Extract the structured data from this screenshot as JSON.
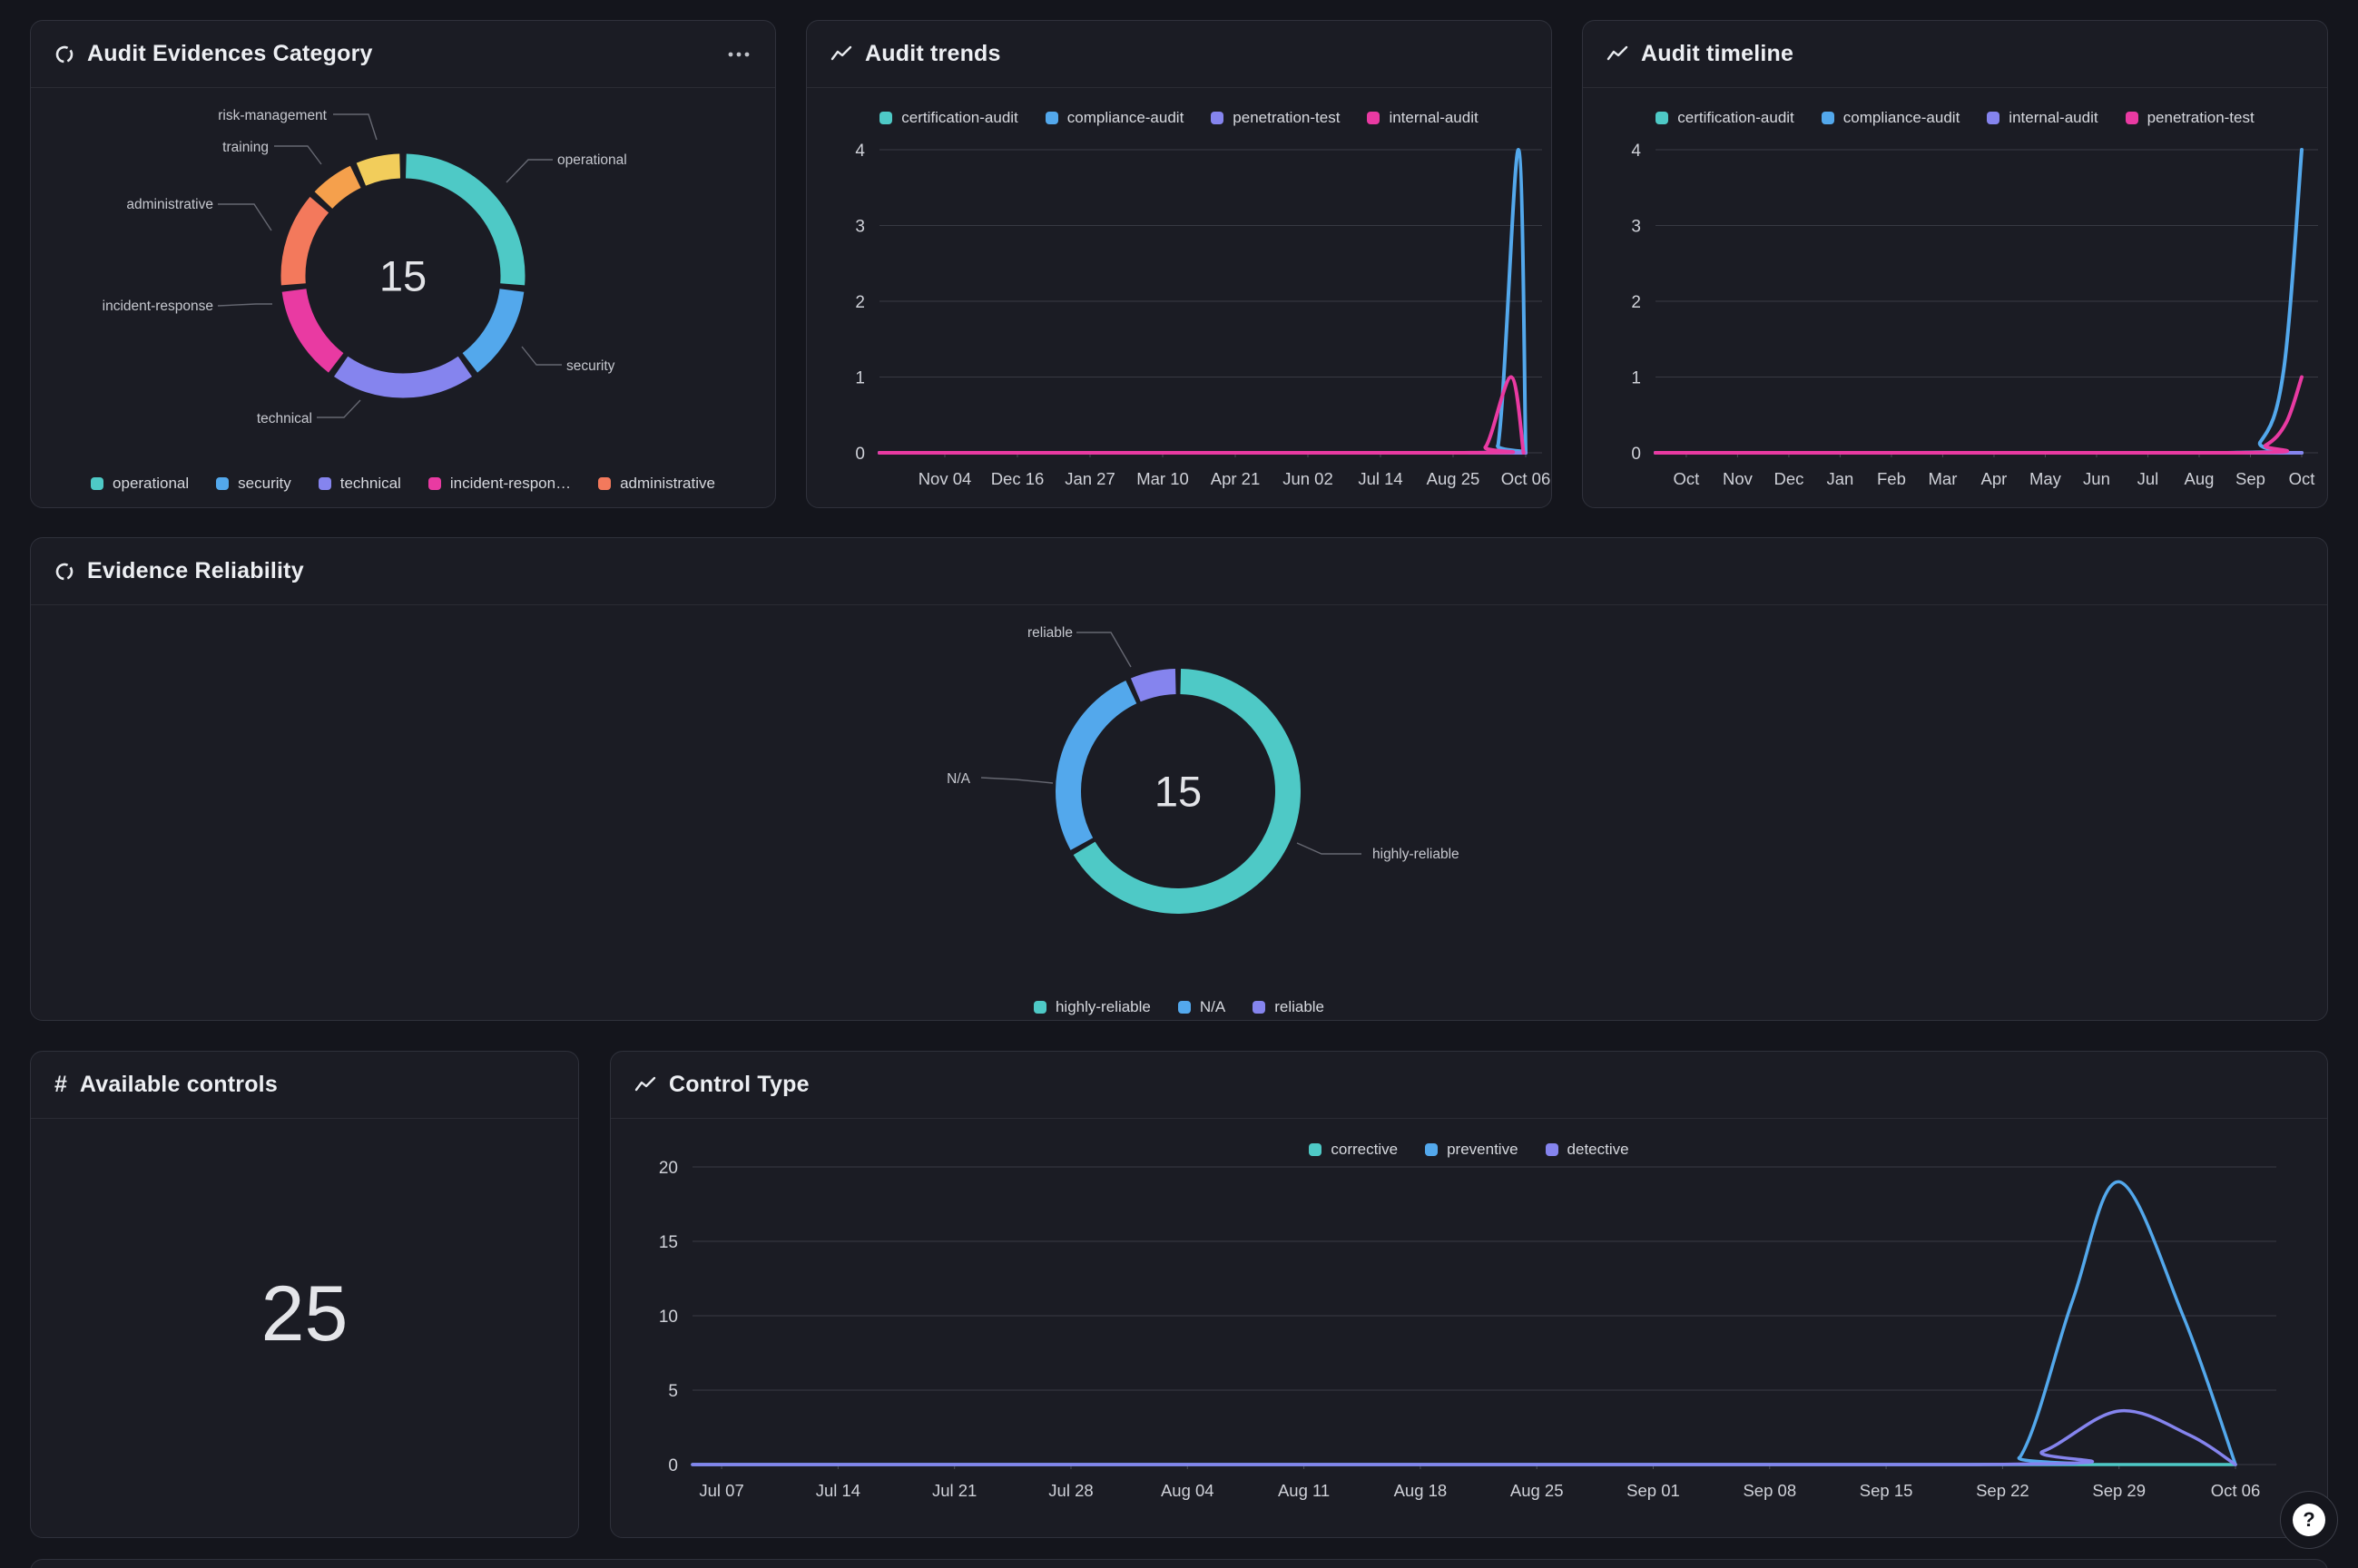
{
  "page": {
    "help_label": "?"
  },
  "chart_data": [
    {
      "id": "audit-evidences-category",
      "type": "donut",
      "title": "Audit Evidences Category",
      "center_total": "15",
      "slices": [
        {
          "label": "operational",
          "value": 4,
          "color": "#4ec9c6"
        },
        {
          "label": "security",
          "value": 2,
          "color": "#53a8ec"
        },
        {
          "label": "technical",
          "value": 3,
          "color": "#8584ee"
        },
        {
          "label": "incident-response",
          "value": 2,
          "color": "#e93aa2"
        },
        {
          "label": "administrative",
          "value": 2,
          "color": "#f3795c"
        },
        {
          "label": "training",
          "value": 1,
          "color": "#f5a04c"
        },
        {
          "label": "risk-management",
          "value": 1,
          "color": "#f2cd5b"
        }
      ],
      "legend": [
        {
          "label": "operational",
          "color": "#4ec9c6"
        },
        {
          "label": "security",
          "color": "#53a8ec"
        },
        {
          "label": "technical",
          "color": "#8584ee"
        },
        {
          "label": "incident-respon…",
          "color": "#e93aa2"
        },
        {
          "label": "administrative",
          "color": "#f3795c"
        }
      ]
    },
    {
      "id": "audit-trends",
      "type": "line",
      "title": "Audit trends",
      "x_ticks": [
        "Nov 04",
        "Dec 16",
        "Jan 27",
        "Mar 10",
        "Apr 21",
        "Jun 02",
        "Jul 14",
        "Aug 25",
        "Oct 06"
      ],
      "y_ticks": [
        4,
        3,
        2,
        1,
        0
      ],
      "y_max": 4,
      "legend": [
        {
          "label": "certification-audit",
          "color": "#4ec9c6"
        },
        {
          "label": "compliance-audit",
          "color": "#53a8ec"
        },
        {
          "label": "penetration-test",
          "color": "#8584ee"
        },
        {
          "label": "internal-audit",
          "color": "#e93aa2"
        }
      ],
      "series": [
        {
          "name": "certification-audit",
          "color": "#4ec9c6",
          "points": [
            [
              null,
              0
            ],
            [
              8,
              0
            ]
          ]
        },
        {
          "name": "compliance-audit",
          "color": "#53a8ec",
          "points": [
            [
              null,
              0
            ],
            [
              7.3,
              0
            ],
            [
              7.62,
              0.1
            ],
            [
              7.9,
              4
            ],
            [
              8,
              0
            ]
          ]
        },
        {
          "name": "penetration-test",
          "color": "#8584ee",
          "points": [
            [
              null,
              0
            ],
            [
              8,
              0
            ]
          ]
        },
        {
          "name": "internal-audit",
          "color": "#e93aa2",
          "points": [
            [
              null,
              0
            ],
            [
              7.15,
              0
            ],
            [
              7.45,
              0.08
            ],
            [
              7.8,
              1
            ],
            [
              7.97,
              0
            ]
          ]
        }
      ]
    },
    {
      "id": "audit-timeline",
      "type": "line",
      "title": "Audit timeline",
      "x_ticks": [
        "Oct",
        "Nov",
        "Dec",
        "Jan",
        "Feb",
        "Mar",
        "Apr",
        "May",
        "Jun",
        "Jul",
        "Aug",
        "Sep",
        "Oct"
      ],
      "y_ticks": [
        4,
        3,
        2,
        1,
        0
      ],
      "y_max": 4,
      "legend": [
        {
          "label": "certification-audit",
          "color": "#4ec9c6"
        },
        {
          "label": "compliance-audit",
          "color": "#53a8ec"
        },
        {
          "label": "internal-audit",
          "color": "#8584ee"
        },
        {
          "label": "penetration-test",
          "color": "#e93aa2"
        }
      ],
      "series": [
        {
          "name": "certification-audit",
          "color": "#4ec9c6",
          "points": [
            [
              null,
              0
            ],
            [
              12,
              0
            ]
          ]
        },
        {
          "name": "compliance-audit",
          "color": "#53a8ec",
          "points": [
            [
              null,
              0
            ],
            [
              10.5,
              0
            ],
            [
              11.2,
              0.15
            ],
            [
              11.65,
              1.1
            ],
            [
              12,
              4
            ]
          ]
        },
        {
          "name": "internal-audit",
          "color": "#8584ee",
          "points": [
            [
              null,
              0
            ],
            [
              12,
              0
            ]
          ]
        },
        {
          "name": "penetration-test",
          "color": "#e93aa2",
          "points": [
            [
              null,
              0
            ],
            [
              10.7,
              0
            ],
            [
              11.3,
              0.1
            ],
            [
              11.7,
              0.4
            ],
            [
              12,
              1
            ]
          ]
        }
      ]
    },
    {
      "id": "evidence-reliability",
      "type": "donut",
      "title": "Evidence Reliability",
      "center_total": "15",
      "slices": [
        {
          "label": "highly-reliable",
          "value": 10,
          "color": "#4ec9c6"
        },
        {
          "label": "N/A",
          "value": 4,
          "color": "#53a8ec"
        },
        {
          "label": "reliable",
          "value": 1,
          "color": "#8584ee"
        }
      ],
      "legend": [
        {
          "label": "highly-reliable",
          "color": "#4ec9c6"
        },
        {
          "label": "N/A",
          "color": "#53a8ec"
        },
        {
          "label": "reliable",
          "color": "#8584ee"
        }
      ]
    },
    {
      "id": "available-controls",
      "type": "stat",
      "title": "Available controls",
      "value": "25"
    },
    {
      "id": "control-type",
      "type": "line",
      "title": "Control Type",
      "x_ticks": [
        "Jul 07",
        "Jul 14",
        "Jul 21",
        "Jul 28",
        "Aug 04",
        "Aug 11",
        "Aug 18",
        "Aug 25",
        "Sep 01",
        "Sep 08",
        "Sep 15",
        "Sep 22",
        "Sep 29",
        "Oct 06"
      ],
      "y_ticks": [
        20,
        15,
        10,
        5,
        0
      ],
      "y_max": 20,
      "legend": [
        {
          "label": "corrective",
          "color": "#4ec9c6"
        },
        {
          "label": "preventive",
          "color": "#53a8ec"
        },
        {
          "label": "detective",
          "color": "#8584ee"
        }
      ],
      "series": [
        {
          "name": "corrective",
          "color": "#4ec9c6",
          "points": [
            [
              null,
              0
            ],
            [
              13,
              0
            ]
          ]
        },
        {
          "name": "preventive",
          "color": "#53a8ec",
          "points": [
            [
              null,
              0
            ],
            [
              10.7,
              0
            ],
            [
              11.15,
              0.5
            ],
            [
              11.6,
              11
            ],
            [
              12,
              19
            ],
            [
              12.55,
              10
            ],
            [
              13,
              0
            ]
          ]
        },
        {
          "name": "detective",
          "color": "#8584ee",
          "points": [
            [
              null,
              0
            ],
            [
              10.8,
              0
            ],
            [
              11.35,
              0.9
            ],
            [
              12,
              3.6
            ],
            [
              12.6,
              2
            ],
            [
              13,
              0
            ]
          ]
        }
      ]
    }
  ]
}
